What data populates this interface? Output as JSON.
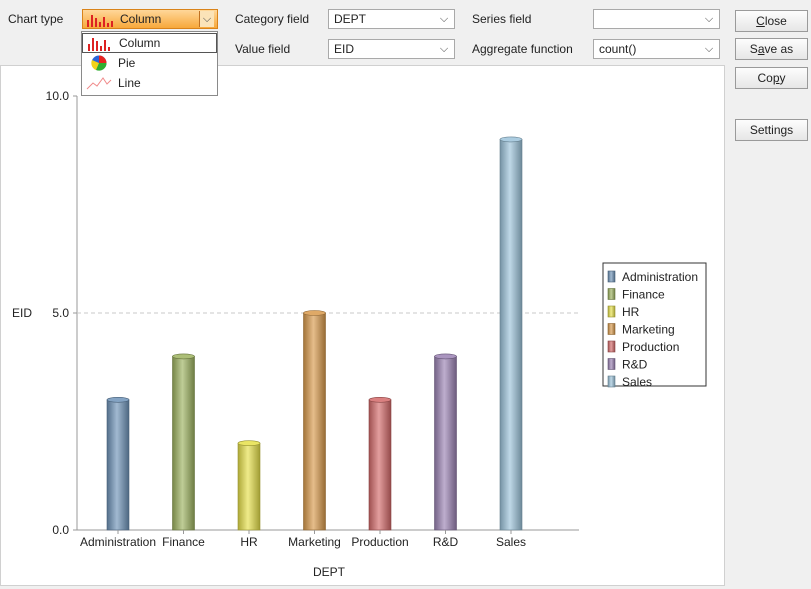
{
  "toolbar": {
    "chart_type_label": "Chart type",
    "chart_type_value": "Column",
    "category_field_label": "Category field",
    "category_field_value": "DEPT",
    "series_field_label": "Series field",
    "series_field_value": "",
    "value_field_label": "Value field",
    "value_field_value": "EID",
    "aggregate_label": "Aggregate function",
    "aggregate_value": "count()"
  },
  "dropdown": {
    "options": [
      {
        "label": "Column",
        "icon": "column-chart-icon",
        "selected": true
      },
      {
        "label": "Pie",
        "icon": "pie-chart-icon",
        "selected": false
      },
      {
        "label": "Line",
        "icon": "line-chart-icon",
        "selected": false
      }
    ]
  },
  "buttons": {
    "close": {
      "mnemonic": "C",
      "rest": "lose"
    },
    "save_as": {
      "pre": "S",
      "mnemonic": "a",
      "rest": "ve as"
    },
    "copy": {
      "pre": "Co",
      "mnemonic": "p",
      "rest": "y"
    },
    "settings": "Settings"
  },
  "chart_data": {
    "type": "bar",
    "categories": [
      "Administration",
      "Finance",
      "HR",
      "Marketing",
      "Production",
      "R&D",
      "Sales"
    ],
    "values": [
      3,
      4,
      2,
      5,
      3,
      4,
      9
    ],
    "colors": [
      "#6e93b8",
      "#9db25f",
      "#e6e04a",
      "#d99a4c",
      "#d46a6a",
      "#9b82b4",
      "#9cc3da"
    ],
    "xlabel": "DEPT",
    "ylabel": "EID",
    "ylim": [
      0,
      10
    ],
    "yticks": [
      "0.0",
      "5.0",
      "10.0"
    ],
    "grid": "dashed line at 5.0",
    "legend_placement": "right",
    "legend": [
      "Administration",
      "Finance",
      "HR",
      "Marketing",
      "Production",
      "R&D",
      "Sales"
    ]
  }
}
